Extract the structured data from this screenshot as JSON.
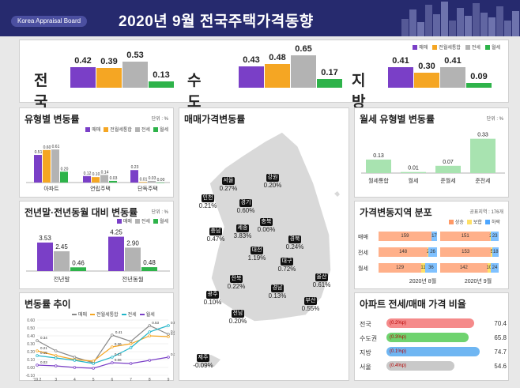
{
  "header": {
    "board": "Korea Appraisal Board",
    "title": "2020년 9월  전국주택가격동향"
  },
  "summary": {
    "legend": [
      "매매",
      "전월세통합",
      "전세",
      "월세"
    ],
    "regions": [
      {
        "name": "전국",
        "values": [
          0.42,
          0.39,
          0.53,
          0.13
        ]
      },
      {
        "name": "수도권",
        "values": [
          0.43,
          0.48,
          0.65,
          0.17
        ]
      },
      {
        "name": "지방",
        "values": [
          0.41,
          0.3,
          0.41,
          0.09
        ]
      }
    ]
  },
  "colors": {
    "sale": "#7a3fc7",
    "integrated": "#f5a623",
    "jeonse": "#b3b3b3",
    "monthly": "#2eb34a",
    "header": "#262a6e",
    "light_green": "#a8e3b0"
  },
  "type_change": {
    "title": "유형별 변동률",
    "unit": "단위 : %",
    "legend": [
      "매매",
      "전월세통합",
      "전세",
      "월세"
    ],
    "categories": [
      "아파트",
      "연립주택",
      "단독주택"
    ],
    "value_labels": [
      [
        "0.51",
        "0.60",
        "0.61",
        "0.20"
      ],
      [
        "0.12",
        "0.10",
        "0.14",
        "0.03"
      ],
      [
        "0.23",
        "0.01",
        "0.03",
        "0.00"
      ]
    ]
  },
  "yoy_change": {
    "title": "전년말·전년동월 대비 변동률",
    "unit": "단위 : %",
    "legend": [
      "매매",
      "전세",
      "월세"
    ],
    "categories": [
      "전년말",
      "전년동월"
    ],
    "value_labels": [
      [
        "3.53",
        "2.45",
        "0.46"
      ],
      [
        "4.25",
        "2.90",
        "0.48"
      ]
    ]
  },
  "trend": {
    "title": "변동률 추이",
    "legend": [
      "매매",
      "전월세통합",
      "전세",
      "월세"
    ],
    "x_labels": [
      "'19.2",
      "3",
      "4",
      "5",
      "6",
      "7",
      "8",
      "9"
    ],
    "y_labels": [
      "0.60",
      "0.50",
      "0.40",
      "0.30",
      "0.20",
      "0.10",
      "0.00",
      "-0.10"
    ],
    "point_labels": {
      "sale": [
        "0.34",
        "0.41",
        "0.53",
        "0.42"
      ],
      "integrated": [
        "0.21",
        "0.26",
        "0.39"
      ],
      "jeonse": [
        "0.15",
        "0.13",
        "0.53"
      ],
      "monthly": [
        "0.03",
        "0.06",
        "0.13"
      ]
    }
  },
  "map": {
    "title": "매매가격변동률",
    "regions": [
      {
        "name": "서울",
        "value": "0.27%"
      },
      {
        "name": "강원",
        "value": "0.20%"
      },
      {
        "name": "인천",
        "value": "0.21%"
      },
      {
        "name": "경기",
        "value": "0.60%"
      },
      {
        "name": "충남",
        "value": "0.47%"
      },
      {
        "name": "세종",
        "value": "3.83%"
      },
      {
        "name": "충북",
        "value": "0.06%"
      },
      {
        "name": "대전",
        "value": "1.19%"
      },
      {
        "name": "경북",
        "value": "0.24%"
      },
      {
        "name": "전북",
        "value": "0.22%"
      },
      {
        "name": "대구",
        "value": "0.72%"
      },
      {
        "name": "울산",
        "value": "0.61%"
      },
      {
        "name": "경남",
        "value": "0.13%"
      },
      {
        "name": "광주",
        "value": "0.10%"
      },
      {
        "name": "부산",
        "value": "0.55%"
      },
      {
        "name": "전남",
        "value": "0.20%"
      },
      {
        "name": "제주",
        "value": "-0.09%"
      }
    ]
  },
  "monthly_type": {
    "title": "월세 유형별 변동률",
    "unit": "단위 : %"
  },
  "distribution": {
    "title": "가격변동지역 분포",
    "unit": "공표지역 : 176개",
    "legend": [
      "상승",
      "보합",
      "하락"
    ],
    "rows": [
      "매매",
      "전세",
      "월세"
    ],
    "months": [
      "2020년 8월",
      "2020년 9월"
    ],
    "values": [
      [
        [
          "159",
          "0",
          "17"
        ],
        [
          "151",
          "2",
          "23"
        ]
      ],
      [
        [
          "148",
          "2",
          "26"
        ],
        [
          "153",
          "5",
          "18"
        ]
      ],
      [
        [
          "129",
          "11",
          "36"
        ],
        [
          "142",
          "10",
          "24"
        ]
      ]
    ]
  },
  "ratio": {
    "title": "아파트 전세/매매 가격 비율",
    "rows": [
      {
        "name": "전국",
        "change": "(0.2%p)",
        "value": 70.4,
        "value_label": "70.4"
      },
      {
        "name": "수도권",
        "change": "(0.3%p)",
        "value": 65.8,
        "value_label": "65.8"
      },
      {
        "name": "지방",
        "change": "(0.1%p)",
        "value": 74.7,
        "value_label": "74.7"
      },
      {
        "name": "서울",
        "change": "(0.4%p)",
        "value": 54.6,
        "value_label": "54.6"
      }
    ]
  },
  "chart_data": [
    {
      "type": "bar",
      "title": "",
      "categories": [
        "전국",
        "수도권",
        "지방"
      ],
      "series": [
        {
          "name": "매매",
          "values": [
            0.42,
            0.43,
            0.41
          ]
        },
        {
          "name": "전월세통합",
          "values": [
            0.39,
            0.48,
            0.3
          ]
        },
        {
          "name": "전세",
          "values": [
            0.53,
            0.65,
            0.41
          ]
        },
        {
          "name": "월세",
          "values": [
            0.13,
            0.17,
            0.09
          ]
        }
      ]
    },
    {
      "type": "bar",
      "title": "유형별 변동률",
      "categories": [
        "아파트",
        "연립주택",
        "단독주택"
      ],
      "series": [
        {
          "name": "매매",
          "values": [
            0.51,
            0.12,
            0.23
          ]
        },
        {
          "name": "전월세통합",
          "values": [
            0.6,
            0.1,
            0.01
          ]
        },
        {
          "name": "전세",
          "values": [
            0.61,
            0.14,
            0.03
          ]
        },
        {
          "name": "월세",
          "values": [
            0.2,
            0.03,
            0.0
          ]
        }
      ],
      "ylim": [
        0,
        0.7
      ]
    },
    {
      "type": "bar",
      "title": "전년말·전년동월 대비 변동률",
      "categories": [
        "전년말",
        "전년동월"
      ],
      "series": [
        {
          "name": "매매",
          "values": [
            3.53,
            4.25
          ]
        },
        {
          "name": "전세",
          "values": [
            2.45,
            2.9
          ]
        },
        {
          "name": "월세",
          "values": [
            0.46,
            0.48
          ]
        }
      ],
      "ylim": [
        0,
        4.5
      ]
    },
    {
      "type": "line",
      "title": "변동률 추이",
      "x": [
        "'19.2",
        "3",
        "4",
        "5",
        "6",
        "7",
        "8",
        "9"
      ],
      "series": [
        {
          "name": "매매",
          "values": [
            0.34,
            0.21,
            0.13,
            0.06,
            0.41,
            0.33,
            0.53,
            0.42
          ]
        },
        {
          "name": "전월세통합",
          "values": [
            0.21,
            0.15,
            0.1,
            0.08,
            0.26,
            0.3,
            0.4,
            0.39
          ]
        },
        {
          "name": "전세",
          "values": [
            0.15,
            0.12,
            0.09,
            0.05,
            0.13,
            0.25,
            0.45,
            0.53
          ]
        },
        {
          "name": "월세",
          "values": [
            0.03,
            0.02,
            0.0,
            -0.01,
            0.06,
            0.05,
            0.09,
            0.13
          ]
        }
      ],
      "ylim": [
        -0.1,
        0.6
      ],
      "grid": true,
      "legend": "top"
    },
    {
      "type": "bar",
      "title": "월세 유형별 변동률",
      "categories": [
        "월세통합",
        "월세",
        "준월세",
        "준전세"
      ],
      "values": [
        0.13,
        0.01,
        0.07,
        0.33
      ],
      "ylim": [
        0,
        0.35
      ]
    },
    {
      "type": "bar",
      "title": "아파트 전세/매매 가격 비율",
      "categories": [
        "전국",
        "수도권",
        "지방",
        "서울"
      ],
      "values": [
        70.4,
        65.8,
        74.7,
        54.6
      ],
      "xlim": [
        0,
        80
      ]
    }
  ]
}
